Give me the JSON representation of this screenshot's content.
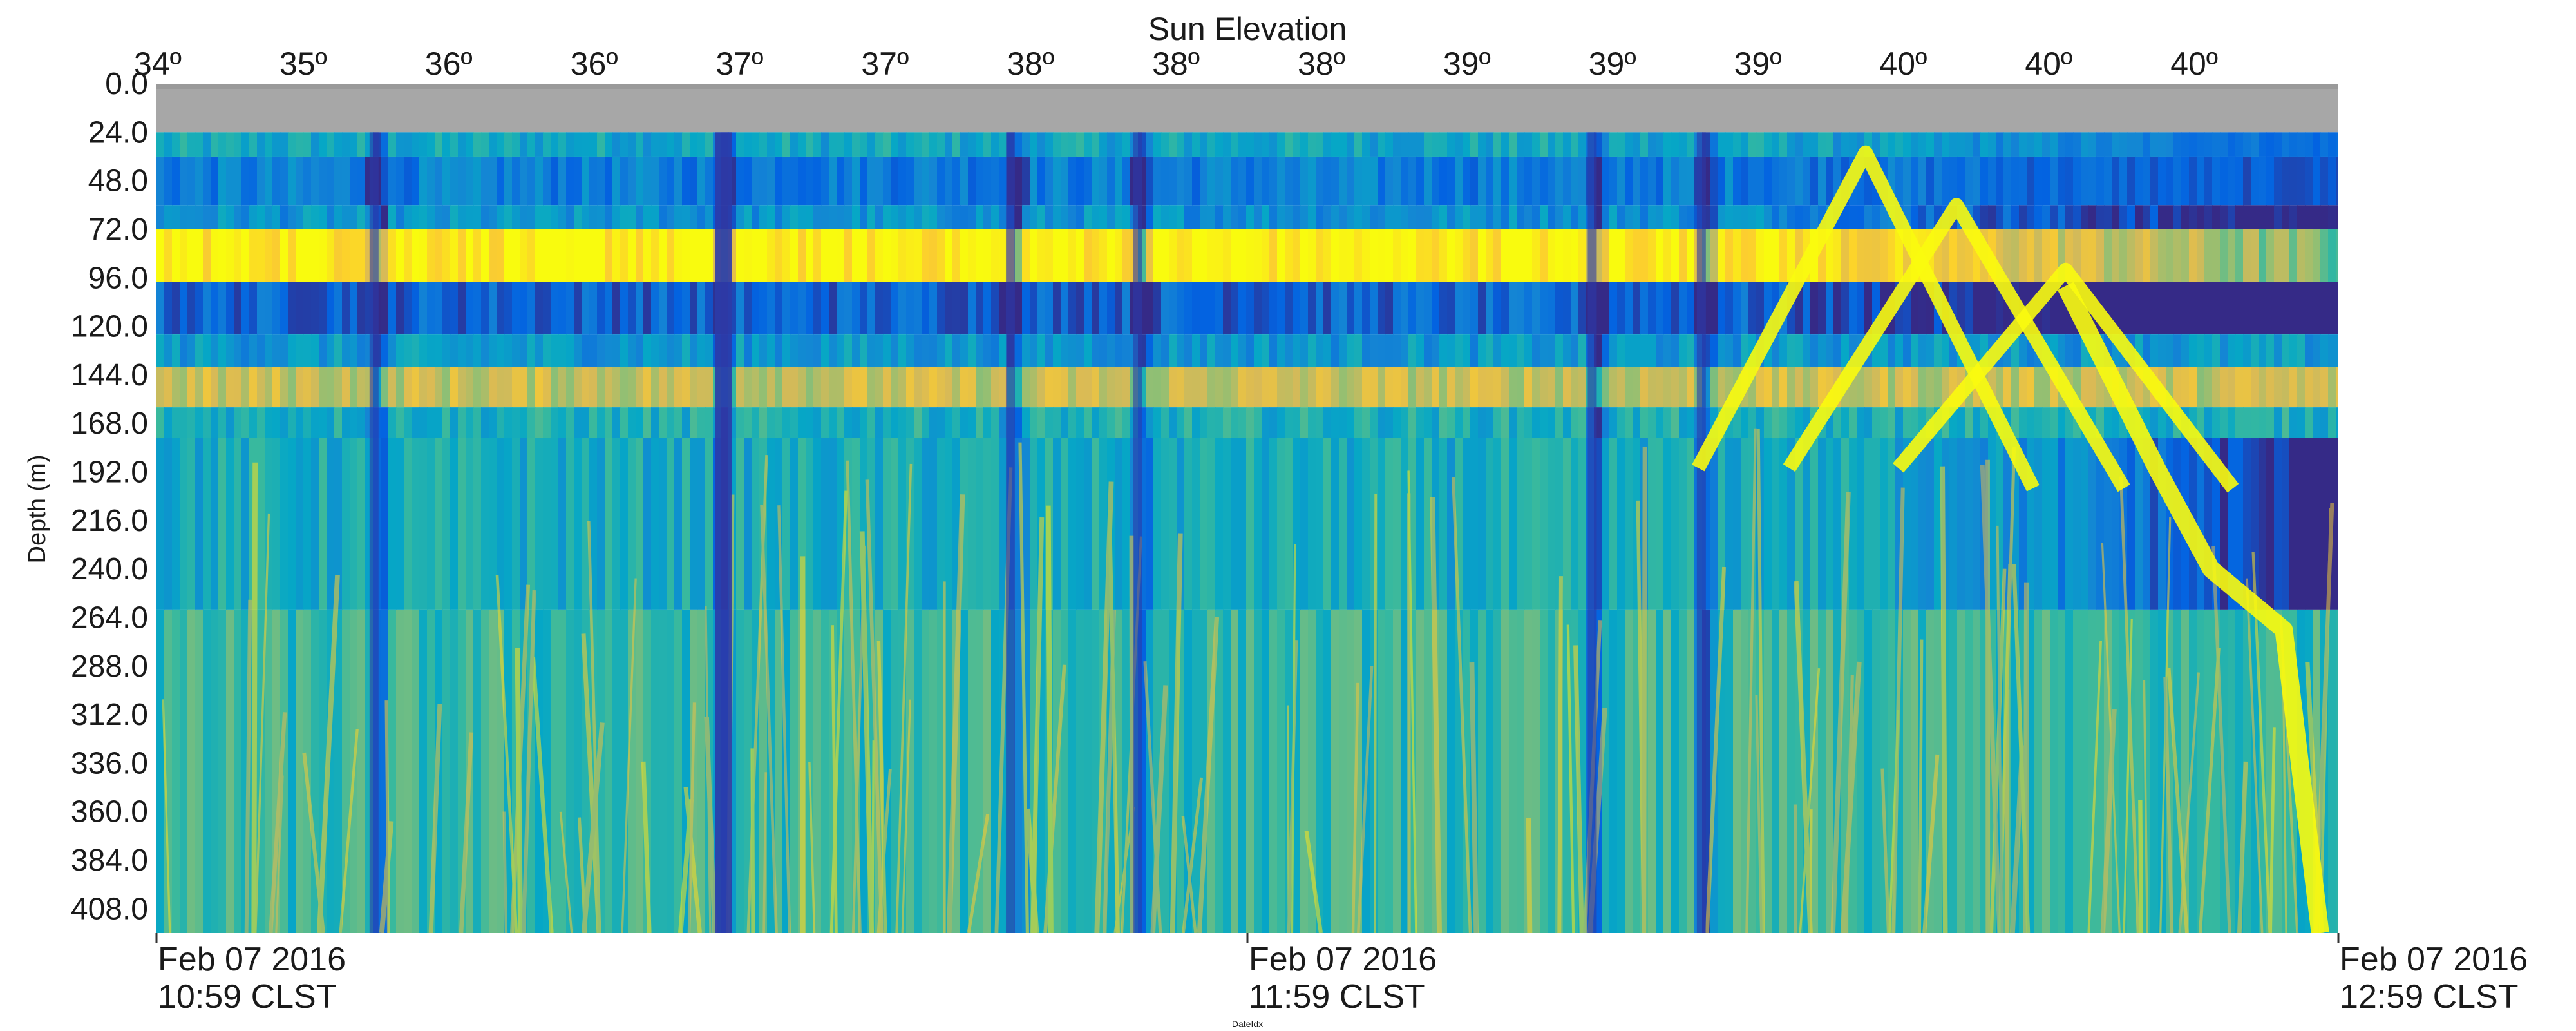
{
  "chart_data": {
    "type": "heatmap",
    "title": "Sun Elevation",
    "ylabel": "Depth (m)",
    "xlabel": "DateIdx",
    "top_axis_ticks": [
      "34º",
      "35º",
      "36º",
      "36º",
      "37º",
      "37º",
      "38º",
      "38º",
      "38º",
      "39º",
      "39º",
      "39º",
      "40º",
      "40º",
      "40º"
    ],
    "y_ticks": [
      "0.0",
      "24.0",
      "48.0",
      "72.0",
      "96.0",
      "120.0",
      "144.0",
      "168.0",
      "192.0",
      "216.0",
      "240.0",
      "264.0",
      "288.0",
      "312.0",
      "336.0",
      "360.0",
      "384.0",
      "408.0"
    ],
    "y_tick_values": [
      0,
      24,
      48,
      72,
      96,
      120,
      144,
      168,
      192,
      216,
      240,
      264,
      288,
      312,
      336,
      360,
      384,
      408
    ],
    "ylim": [
      0,
      420
    ],
    "y_inverted": true,
    "x_ticks": [
      {
        "date": "Feb 07 2016",
        "time": "10:59 CLST"
      },
      {
        "date": "Feb 07 2016",
        "time": "11:59 CLST"
      },
      {
        "date": "Feb 07 2016",
        "time": "12:59 CLST"
      }
    ],
    "xlim": [
      "Feb 07 2016 10:59 CLST",
      "Feb 07 2016 12:59 CLST"
    ],
    "colormap": "parula",
    "colormap_stops": [
      "#352a87",
      "#0363e1",
      "#1485d4",
      "#06a7c6",
      "#38b99e",
      "#92bf73",
      "#d9ba56",
      "#fcce2e",
      "#f9fb0e"
    ],
    "no_data_color": "#a7a7a7",
    "no_data_depth_range": [
      0,
      24
    ],
    "intensity_scale": [
      0,
      1
    ],
    "bands": [
      {
        "depth_range": [
          24,
          36
        ],
        "intensity": 0.38
      },
      {
        "depth_range": [
          36,
          60
        ],
        "intensity": 0.22
      },
      {
        "depth_range": [
          60,
          72
        ],
        "intensity": 0.3
      },
      {
        "depth_range": [
          72,
          98
        ],
        "intensity": 0.97
      },
      {
        "depth_range": [
          98,
          124
        ],
        "intensity": 0.14
      },
      {
        "depth_range": [
          124,
          140
        ],
        "intensity": 0.32
      },
      {
        "depth_range": [
          140,
          160
        ],
        "intensity": 0.72
      },
      {
        "depth_range": [
          160,
          175
        ],
        "intensity": 0.42
      },
      {
        "depth_range": [
          175,
          260
        ],
        "intensity": 0.4
      },
      {
        "depth_range": [
          260,
          420
        ],
        "intensity": 0.47
      }
    ],
    "dark_streaks_time": [
      "11:11 CLST",
      "11:30 CLST",
      "11:46 CLST",
      "11:53 CLST",
      "12:18 CLST",
      "12:24 CLST"
    ],
    "scattering_layer_peaks": [
      {
        "time": "12:33 CLST",
        "depth": 34
      },
      {
        "time": "12:38 CLST",
        "depth": 60
      },
      {
        "time": "12:44 CLST",
        "depth": 92
      }
    ]
  }
}
